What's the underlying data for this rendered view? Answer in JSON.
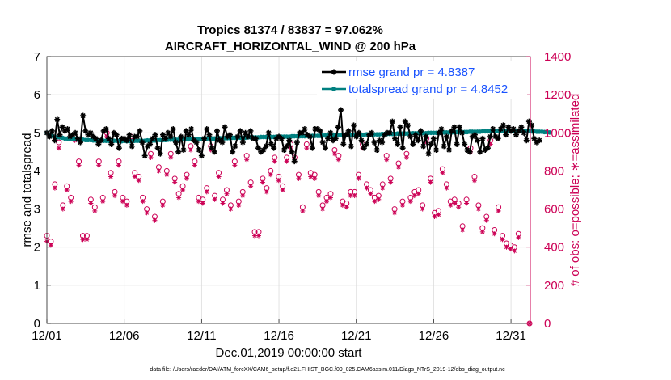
{
  "chart_data": {
    "type": "line",
    "title_line1": "Tropics 81374 / 83837 = 97.062%",
    "title_line2": "AIRCRAFT_HORIZONTAL_WIND @ 200 hPa",
    "xlabel": "Dec.01,2019 00:00:00 start",
    "ylabel_left": "rmse and totalspread",
    "ylabel_right": "# of obs: o=possible; ∗=assimilated",
    "x_tick_labels": [
      "12/01",
      "12/06",
      "12/11",
      "12/16",
      "12/21",
      "12/26",
      "12/31"
    ],
    "x_ticks_day": [
      0,
      5,
      10,
      15,
      20,
      25,
      30
    ],
    "xlim_day": [
      0,
      31.25
    ],
    "ylim_left": [
      0,
      7
    ],
    "y_ticks_left": [
      "0",
      "1",
      "2",
      "3",
      "4",
      "5",
      "6",
      "7"
    ],
    "ylim_right": [
      0,
      1400
    ],
    "y_ticks_right": [
      "0",
      "200",
      "400",
      "600",
      "800",
      "1000",
      "1200",
      "1400"
    ],
    "legend_location": "top-right",
    "footnote": "data file: /Users/raeder/DAI/ATM_forcXX/CAM6_setup/f.e21.FHIST_BGC.f09_025.CAM6assim.011/Diags_NTrS_2019-12/obs_diag_output.nc",
    "colors": {
      "rmse": "#000000",
      "spread": "#008080",
      "obs": "#cc0055",
      "legend_text": "#1a53ff"
    },
    "series": [
      {
        "name": "rmse",
        "legend": "rmse grand pr = 4.8387",
        "values": [
          5.0,
          4.9,
          5.05,
          4.8,
          5.35,
          4.95,
          5.15,
          5.05,
          5.1,
          4.9,
          4.95,
          5.0,
          4.85,
          4.75,
          5.45,
          5.05,
          4.95,
          5.0,
          4.9,
          4.85,
          4.7,
          4.8,
          5.05,
          5.1,
          4.85,
          4.7,
          5.0,
          4.95,
          4.6,
          4.85,
          4.85,
          4.8,
          4.95,
          4.65,
          4.9,
          4.9,
          5.05,
          4.75,
          4.4,
          4.65,
          4.7,
          4.85,
          4.95,
          4.6,
          4.45,
          4.95,
          4.85,
          5.0,
          4.9,
          5.1,
          4.75,
          4.5,
          4.9,
          4.55,
          5.05,
          4.95,
          5.1,
          4.8,
          4.75,
          4.55,
          4.4,
          4.85,
          5.1,
          4.95,
          4.6,
          4.5,
          5.05,
          4.8,
          4.75,
          5.15,
          4.9,
          4.95,
          4.5,
          4.65,
          4.9,
          5.05,
          4.75,
          5.0,
          4.9,
          5.05,
          4.85,
          4.85,
          4.6,
          4.5,
          4.55,
          4.65,
          5.0,
          4.7,
          4.6,
          4.85,
          4.9,
          4.85,
          4.55,
          4.65,
          4.8,
          4.5,
          4.25,
          4.75,
          5.0,
          5.0,
          5.1,
          4.95,
          4.9,
          4.6,
          5.1,
          5.1,
          5.05,
          4.75,
          4.6,
          4.85,
          5.0,
          4.8,
          4.85,
          5.15,
          5.6,
          4.7,
          4.95,
          5.05,
          4.65,
          5.2,
          4.9,
          5.0,
          4.8,
          4.6,
          4.7,
          4.95,
          5.0,
          4.75,
          4.55,
          4.8,
          4.75,
          4.95,
          5.0,
          5.0,
          5.3,
          4.85,
          4.7,
          5.15,
          4.6,
          5.3,
          5.2,
          4.9,
          4.7,
          4.95,
          4.8,
          5.05,
          4.65,
          4.9,
          4.45,
          4.7,
          4.85,
          4.55,
          5.0,
          5.1,
          4.65,
          4.9,
          4.55,
          5.05,
          5.15,
          4.7,
          5.15,
          5.0,
          4.7,
          4.55,
          4.5,
          4.9,
          4.95,
          4.8,
          4.5,
          4.85,
          4.55,
          4.6,
          4.9,
          5.1,
          4.9,
          4.85,
          5.1,
          5.2,
          4.95,
          5.15,
          5.05,
          5.1,
          4.95,
          5.05,
          5.15,
          5.0,
          4.8,
          5.3,
          5.2,
          4.85,
          4.75,
          4.8
        ],
        "x_start_day": 0,
        "x_step_day": 0.166667
      },
      {
        "name": "totalspread",
        "legend": "totalspread grand pr = 4.8452",
        "values": [
          5.0,
          4.95,
          4.92,
          4.9,
          4.88,
          4.88,
          4.87,
          4.85,
          4.85,
          4.84,
          4.83,
          4.83,
          4.82,
          4.82,
          4.82,
          4.81,
          4.81,
          4.81,
          4.8,
          4.8,
          4.8,
          4.8,
          4.79,
          4.79,
          4.79,
          4.79,
          4.79,
          4.79,
          4.79,
          4.78,
          4.79,
          4.78,
          4.78,
          4.78,
          4.79,
          4.79,
          4.79,
          4.79,
          4.79,
          4.8,
          4.8,
          4.8,
          4.8,
          4.81,
          4.81,
          4.81,
          4.81,
          4.82,
          4.82,
          4.82,
          4.82,
          4.82,
          4.83,
          4.83,
          4.83,
          4.83,
          4.83,
          4.84,
          4.84,
          4.84,
          4.84,
          4.84,
          4.85,
          4.85,
          4.85,
          4.85,
          4.85,
          4.86,
          4.86,
          4.86,
          4.86,
          4.86,
          4.87,
          4.87,
          4.87,
          4.87,
          4.87,
          4.87,
          4.88,
          4.88,
          4.88,
          4.88,
          4.88,
          4.89,
          4.89,
          4.89,
          4.89,
          4.89,
          4.89,
          4.9,
          4.9,
          4.9,
          4.9,
          4.9,
          4.9,
          4.91,
          4.91,
          4.91,
          4.91,
          4.91,
          4.91,
          4.92,
          4.92,
          4.92,
          4.92,
          4.92,
          4.92,
          4.93,
          4.93,
          4.93,
          4.93,
          4.93,
          4.94,
          4.94,
          4.94,
          4.94,
          4.94,
          4.94,
          4.95,
          4.95,
          4.95,
          4.95,
          4.95,
          4.95,
          4.96,
          4.96,
          4.96,
          4.96,
          4.96,
          4.96,
          4.97,
          4.97,
          4.97,
          4.97,
          4.97,
          4.97,
          4.98,
          4.98,
          4.98,
          4.98,
          4.98,
          4.98,
          4.99,
          4.99,
          4.99,
          4.99,
          4.99,
          4.99,
          5.0,
          5.0,
          5.0,
          5.0,
          5.0,
          5.0,
          5.01,
          5.01,
          5.01,
          5.01,
          5.01,
          5.02,
          5.02,
          5.02,
          5.02,
          5.02,
          5.03,
          5.03,
          5.03,
          5.03,
          5.03,
          5.04,
          5.04,
          5.04,
          5.04,
          5.05,
          5.05,
          5.05,
          5.05,
          5.05,
          5.05,
          5.05,
          5.05,
          5.05,
          5.05,
          5.05,
          5.05,
          5.05,
          5.05,
          5.05,
          5.04,
          5.04,
          5.03,
          5.03,
          5.03,
          5.02,
          5.02,
          5.01
        ],
        "x_start_day": 0,
        "x_step_day": 0.166667
      },
      {
        "name": "obs_possible",
        "marker": "o",
        "values": [
          460,
          430,
          730,
          950,
          620,
          720,
          660,
          980,
          850,
          460,
          460,
          650,
          610,
          850,
          660,
          1000,
          790,
          690,
          850,
          660,
          640,
          980,
          790,
          770,
          660,
          600,
          890,
          560,
          820,
          640,
          800,
          890,
          760,
          680,
          720,
          780,
          930,
          850,
          660,
          650,
          710,
          930,
          670,
          790,
          650,
          700,
          620,
          850,
          640,
          690,
          880,
          740,
          480,
          480,
          760,
          710,
          800,
          870,
          770,
          720,
          870,
          940,
          870,
          780,
          610,
          940,
          790,
          780,
          690,
          620,
          660,
          680,
          910,
          880,
          640,
          630,
          690,
          690,
          780,
          940,
          730,
          700,
          660,
          670,
          730,
          880,
          760,
          600,
          840,
          640,
          890,
          660,
          690,
          700,
          620,
          970,
          760,
          580,
          590,
          810,
          730,
          640,
          650,
          630,
          510,
          650,
          920,
          770,
          620,
          500,
          560,
          960,
          490,
          610,
          460,
          420,
          410,
          400,
          470
        ],
        "x_start_day": 0,
        "x_step_day": 0.258333
      },
      {
        "name": "obs_assimilated",
        "marker": "*",
        "values": [
          430,
          410,
          710,
          920,
          600,
          700,
          640,
          960,
          830,
          440,
          440,
          630,
          590,
          830,
          640,
          980,
          770,
          670,
          830,
          640,
          620,
          960,
          770,
          750,
          640,
          580,
          870,
          540,
          800,
          620,
          780,
          870,
          740,
          660,
          700,
          760,
          910,
          830,
          640,
          630,
          690,
          910,
          650,
          770,
          630,
          680,
          600,
          830,
          620,
          670,
          860,
          720,
          460,
          460,
          740,
          690,
          780,
          850,
          750,
          700,
          850,
          920,
          850,
          760,
          590,
          920,
          770,
          760,
          670,
          600,
          640,
          660,
          890,
          860,
          620,
          610,
          670,
          670,
          760,
          920,
          710,
          680,
          640,
          650,
          710,
          860,
          740,
          580,
          820,
          620,
          870,
          640,
          670,
          680,
          600,
          950,
          740,
          560,
          570,
          790,
          710,
          620,
          630,
          610,
          490,
          630,
          900,
          750,
          600,
          480,
          540,
          940,
          470,
          590,
          440,
          400,
          390,
          380,
          450
        ],
        "x_start_day": 0,
        "x_step_day": 0.258333
      }
    ],
    "final_obs_point": {
      "day": 31.2,
      "value": 0
    }
  }
}
